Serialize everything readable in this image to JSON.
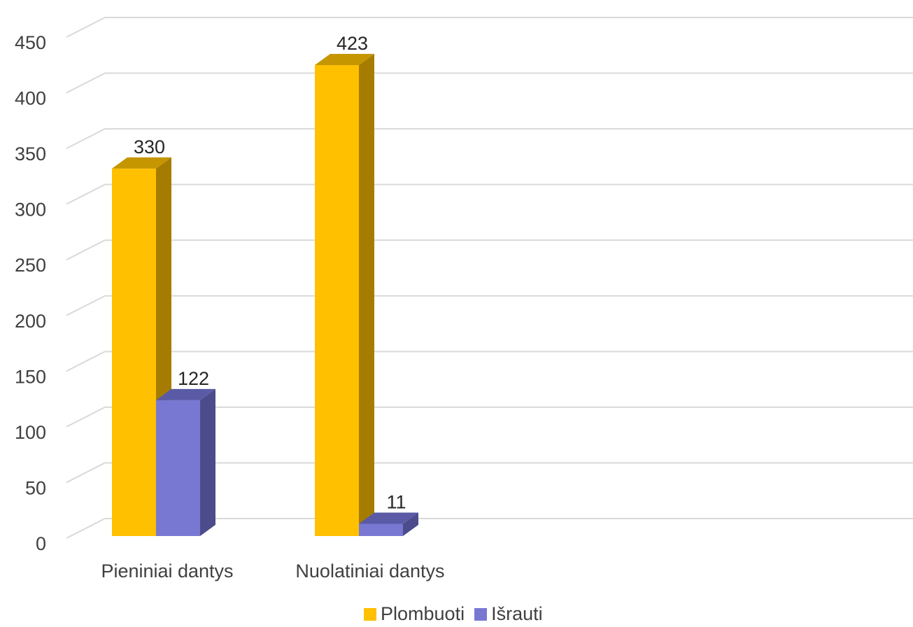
{
  "chart_data": {
    "type": "bar",
    "style": "3d-clustered-column",
    "categories": [
      "Pieniniai dantys",
      "Nuolatiniai dantys"
    ],
    "series": [
      {
        "name": "Plombuoti",
        "values": [
          330,
          423
        ],
        "color": "#FFC000",
        "side_color": "#A67C00",
        "top_color": "#C59600"
      },
      {
        "name": "Išrauti",
        "values": [
          122,
          11
        ],
        "color": "#7878D2",
        "side_color": "#4C4C8C",
        "top_color": "#5A5AA6"
      }
    ],
    "yticks": [
      "0",
      "50",
      "100",
      "150",
      "200",
      "250",
      "300",
      "350",
      "400",
      "450"
    ],
    "ylim": [
      0,
      450
    ],
    "grid": true,
    "legend": "bottom",
    "data_labels": true
  }
}
